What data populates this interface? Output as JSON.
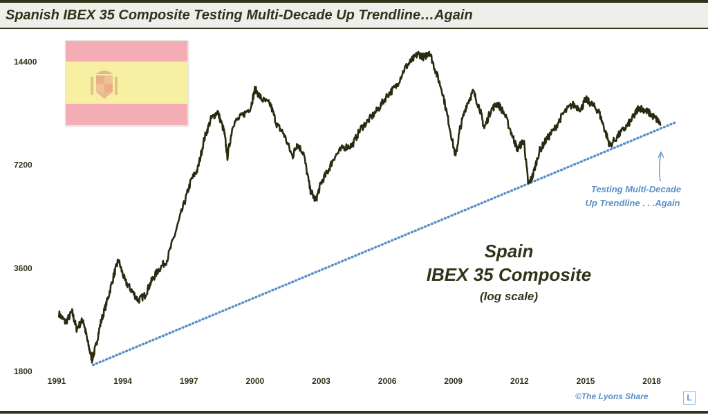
{
  "title": "Spanish IBEX 35 Composite Testing Multi-Decade Up Trendline…Again",
  "copyright": "©The Lyons Share",
  "logo_letter": "L",
  "colors": {
    "series": "#2a2a10",
    "trendline": "#5a8fc8",
    "annotation": "#5a8fc8",
    "frame": "#2f3418",
    "flag_red": "#f4adb4",
    "flag_yellow": "#f7f0a3"
  },
  "chart_data": {
    "type": "line",
    "scale": "log",
    "ylim": [
      1800,
      16500
    ],
    "xlim": [
      1991,
      2019.8
    ],
    "yticks": [
      1800,
      3600,
      7200,
      14400
    ],
    "ytick_labels": [
      "1800",
      "3600",
      "7200",
      "14400"
    ],
    "xticks": [
      1991,
      1994,
      1997,
      2000,
      2003,
      2006,
      2009,
      2012,
      2015,
      2018
    ],
    "xtick_labels": [
      "1991",
      "1994",
      "1997",
      "2000",
      "2003",
      "2006",
      "2009",
      "2012",
      "2015",
      "2018"
    ],
    "grid": false,
    "annotation_main": [
      "Spain",
      "IBEX 35 Composite",
      "(log scale)"
    ],
    "annotation_trend": [
      "Testing Multi-Decade",
      "Up Trendline . . .Again"
    ],
    "series": [
      {
        "x": [
          1991.1,
          1991.4,
          1991.7,
          1991.9,
          1992.2,
          1992.4,
          1992.6,
          1992.75,
          1993.0,
          1993.3,
          1993.6,
          1993.8,
          1994.1,
          1994.4,
          1994.7,
          1995.0,
          1995.3,
          1995.6,
          1996.0,
          1996.4,
          1996.8,
          1997.1,
          1997.4,
          1997.7,
          1998.0,
          1998.3,
          1998.6,
          1998.75,
          1999.0,
          1999.4,
          1999.8,
          2000.0,
          2000.3,
          2000.7,
          2001.0,
          2001.3,
          2001.7,
          2001.9,
          2002.2,
          2002.5,
          2002.75,
          2003.0,
          2003.3,
          2003.6,
          2004.0,
          2004.4,
          2004.8,
          2005.2,
          2005.6,
          2006.0,
          2006.4,
          2006.8,
          2007.1,
          2007.4,
          2007.7,
          2007.9,
          2008.2,
          2008.5,
          2008.8,
          2009.1,
          2009.3,
          2009.6,
          2009.9,
          2010.2,
          2010.4,
          2010.7,
          2011.0,
          2011.3,
          2011.7,
          2011.9,
          2012.2,
          2012.4,
          2012.6,
          2012.9,
          2013.2,
          2013.6,
          2014.0,
          2014.4,
          2014.8,
          2015.0,
          2015.3,
          2015.6,
          2015.9,
          2016.1,
          2016.5,
          2016.9,
          2017.2,
          2017.4,
          2017.7,
          2017.9,
          2018.2,
          2018.4
        ],
        "y": [
          2650,
          2500,
          2680,
          2400,
          2550,
          2200,
          1950,
          2100,
          2500,
          2900,
          3450,
          3800,
          3300,
          3100,
          2900,
          3000,
          3300,
          3550,
          3800,
          4600,
          5600,
          6500,
          7000,
          8600,
          9800,
          10300,
          9000,
          7600,
          9500,
          10000,
          10600,
          12000,
          11200,
          10800,
          9400,
          8900,
          7600,
          8300,
          7800,
          6100,
          5650,
          6400,
          6900,
          7600,
          8100,
          8200,
          9200,
          9800,
          10500,
          11500,
          12200,
          13800,
          14500,
          15200,
          14800,
          15500,
          13500,
          11800,
          9500,
          7600,
          9200,
          10800,
          11800,
          10500,
          9200,
          10400,
          10900,
          10200,
          8700,
          8000,
          8500,
          6300,
          6700,
          7900,
          8500,
          9200,
          10200,
          10800,
          10500,
          11200,
          10800,
          10300,
          9000,
          8200,
          8800,
          9400,
          10000,
          10600,
          10400,
          10200,
          9800,
          9500
        ]
      },
      {
        "name": "",
        "style": "dotted",
        "x": [
          1992.65,
          2019.1
        ],
        "y": [
          1880,
          9600
        ]
      }
    ]
  }
}
